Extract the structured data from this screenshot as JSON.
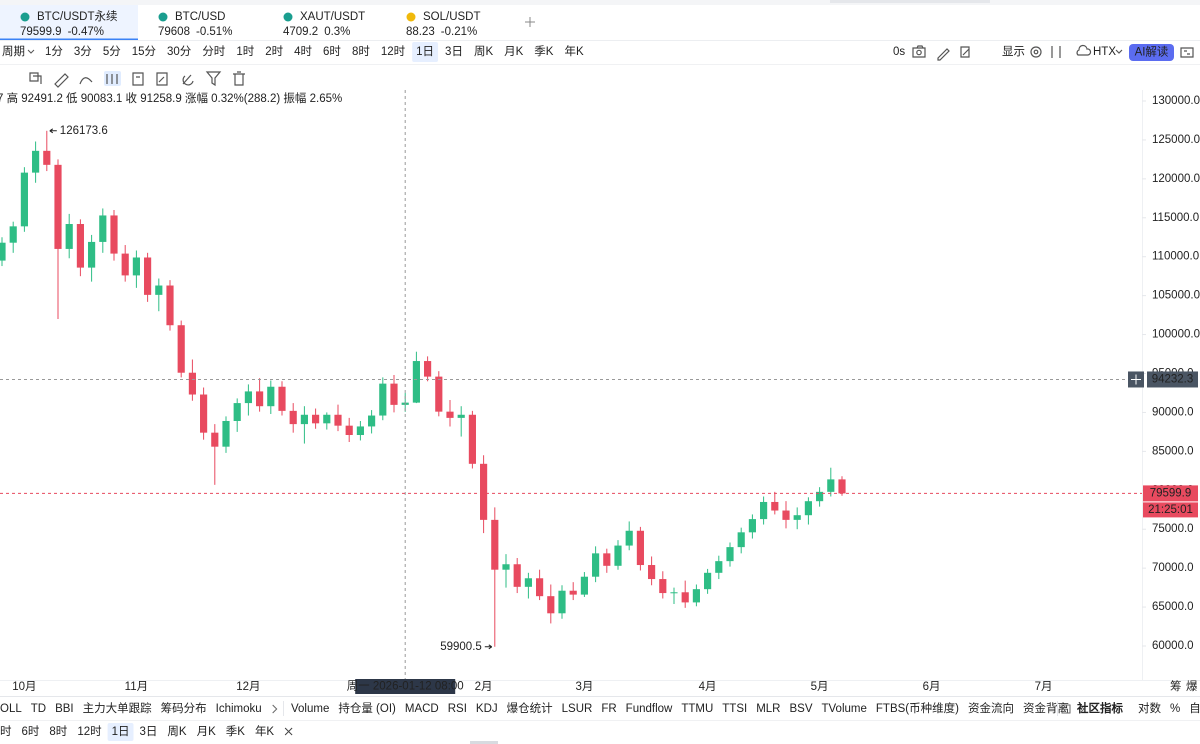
{
  "tabs": [
    {
      "symbol": "BTC/USDT永续",
      "price": "79599.9",
      "change": "-0.47%",
      "color": "#26a69a"
    },
    {
      "symbol": "BTC/USD",
      "price": "79608",
      "change": "-0.51%",
      "color": "#222222"
    },
    {
      "symbol": "XAUT/USDT",
      "price": "4709.2",
      "change": "0.3%",
      "color": "#26a69a"
    },
    {
      "symbol": "SOL/USDT",
      "price": "88.23",
      "change": "-0.21%",
      "color": "#e84a5f"
    }
  ],
  "toolbar": {
    "period": "周期",
    "intervals": [
      "1分",
      "3分",
      "5分",
      "15分",
      "30分",
      "分时",
      "1时",
      "2时",
      "4时",
      "6时",
      "8时",
      "12时",
      "1日",
      "3日",
      "周K",
      "月K",
      "季K",
      "年K"
    ],
    "selected_index": 12,
    "timer": "0s",
    "display": "显示",
    "exchange": "HTX",
    "ai": "AI解读"
  },
  "ohlc_info": "7 高 92491.2 低 90083.1 收 91258.9 涨幅 0.32%(288.2) 振幅 2.65%",
  "chart_data": {
    "type": "candlestick",
    "categories": [
      null,
      null,
      "10月",
      null,
      null,
      null,
      null,
      null,
      null,
      null,
      null,
      null,
      "11月",
      null,
      null,
      null,
      null,
      null,
      null,
      null,
      null,
      null,
      "12月",
      null,
      null,
      null,
      null,
      null,
      null,
      null,
      null,
      null,
      null,
      null,
      null,
      null,
      null,
      null,
      null,
      null,
      null,
      null,
      null,
      "2月",
      null,
      null,
      null,
      null,
      null,
      null,
      null,
      null,
      "3月",
      null,
      null,
      null,
      null,
      null,
      null,
      null,
      null,
      null,
      null,
      "4月",
      null,
      null,
      null,
      null,
      null,
      null,
      null,
      null,
      null,
      "5月",
      null,
      null,
      null,
      null,
      null,
      null,
      null,
      null,
      null,
      "6月",
      null,
      null,
      null,
      null,
      null,
      null,
      null,
      null,
      null,
      "7月",
      null,
      null,
      null,
      null,
      null,
      null,
      null,
      null,
      null
    ],
    "open": [
      109500,
      111800,
      113900,
      120800,
      123600,
      121800,
      111000,
      114200,
      108600,
      111900,
      115300,
      110400,
      107600,
      109900,
      105100,
      106300,
      101200,
      95100,
      92300,
      87400,
      85600,
      88900,
      91200,
      92700,
      90800,
      93300,
      90200,
      88500,
      89700,
      88600,
      89700,
      88300,
      87100,
      88200,
      89600,
      93700,
      90970.7,
      91258.9,
      96600,
      94600,
      90100,
      89300,
      89700,
      83400,
      76200,
      69800,
      70500,
      67600,
      68700,
      66400,
      64200,
      67100,
      66600,
      68900,
      71900,
      70300,
      72900,
      74800,
      70400,
      68600,
      66800,
      66900,
      65600,
      67300,
      69400,
      70900,
      72700,
      74600,
      76300,
      78500,
      77400,
      76200,
      76800,
      78600,
      79800,
      81400,
      null,
      null,
      null,
      null,
      null,
      null,
      null,
      null,
      null,
      null,
      null,
      null,
      null,
      null,
      null,
      null,
      null,
      null,
      null,
      null,
      null,
      null,
      null,
      null,
      null,
      null,
      null
    ],
    "high": [
      112500,
      114500,
      121500,
      124800,
      126173.6,
      122500,
      115500,
      114800,
      112800,
      116200,
      116000,
      111500,
      110800,
      110500,
      107200,
      107000,
      101800,
      96800,
      93200,
      88500,
      89500,
      91800,
      93600,
      94400,
      94100,
      94000,
      91200,
      90800,
      90500,
      90000,
      91000,
      89300,
      88900,
      90300,
      94500,
      94800,
      92491.2,
      97800,
      97200,
      95300,
      91600,
      90800,
      90200,
      84500,
      77800,
      71800,
      71300,
      69400,
      69800,
      67900,
      67800,
      68200,
      69500,
      72800,
      72500,
      73600,
      76000,
      75300,
      71500,
      69600,
      67500,
      68400,
      67900,
      69900,
      71600,
      73300,
      75200,
      76900,
      79200,
      79800,
      78600,
      77800,
      79100,
      80400,
      82900,
      81800,
      null,
      null,
      null,
      null,
      null,
      null,
      null,
      null,
      null,
      null,
      null,
      null,
      null,
      null,
      null,
      null,
      null,
      null,
      null,
      null,
      null,
      null,
      null,
      null,
      null,
      null,
      null
    ],
    "low": [
      108800,
      110500,
      113200,
      119500,
      121000,
      102000,
      109800,
      107500,
      106800,
      110500,
      109500,
      106800,
      106000,
      104200,
      103000,
      100500,
      94500,
      91500,
      86500,
      80700,
      84800,
      87500,
      89600,
      90100,
      89800,
      89600,
      87400,
      86000,
      87900,
      87800,
      87600,
      86200,
      86400,
      87300,
      89000,
      90000,
      90083.1,
      91200,
      94000,
      89500,
      88200,
      86900,
      82800,
      74500,
      59900.5,
      67500,
      66800,
      66100,
      65900,
      62900,
      63500,
      65900,
      66300,
      68200,
      69400,
      69800,
      72300,
      69700,
      67800,
      66100,
      65400,
      64900,
      65100,
      66700,
      68600,
      70200,
      71900,
      73800,
      75600,
      76900,
      75100,
      75000,
      75600,
      77900,
      79200,
      79300,
      null,
      null,
      null,
      null,
      null,
      null,
      null,
      null,
      null,
      null,
      null,
      null,
      null,
      null,
      null,
      null,
      null,
      null,
      null,
      null,
      null,
      null,
      null,
      null,
      null,
      null,
      null
    ],
    "close": [
      111800,
      113900,
      120800,
      123600,
      121800,
      111000,
      114200,
      108600,
      111900,
      115300,
      110400,
      107600,
      109900,
      105100,
      106300,
      101200,
      95100,
      92300,
      87400,
      85600,
      88900,
      91200,
      92700,
      90800,
      93300,
      90200,
      88500,
      89700,
      88600,
      89700,
      88300,
      87100,
      88200,
      89600,
      93700,
      90970.7,
      91258.9,
      96600,
      94600,
      90100,
      89300,
      89700,
      83400,
      76200,
      69800,
      70500,
      67600,
      68700,
      66400,
      64200,
      67100,
      66600,
      68900,
      71900,
      70300,
      72900,
      74800,
      70400,
      68600,
      66800,
      66900,
      65600,
      67300,
      69400,
      70900,
      72700,
      74600,
      76300,
      78500,
      77400,
      76200,
      76800,
      78600,
      79800,
      81400,
      79599.9,
      null,
      null,
      null,
      null,
      null,
      null,
      null,
      null,
      null,
      null,
      null,
      null,
      null,
      null,
      null,
      null,
      null,
      null,
      null,
      null,
      null,
      null,
      null,
      null,
      null,
      null,
      null
    ],
    "up_color": "#2ebd85",
    "down_color": "#e84a5f",
    "ylim": [
      60000,
      130000
    ],
    "yticks": [
      {
        "value": 60000,
        "label": "60000.0"
      },
      {
        "value": 65000,
        "label": "65000.0"
      },
      {
        "value": 70000,
        "label": "70000.0"
      },
      {
        "value": 75000,
        "label": "75000.0"
      },
      {
        "value": 80000,
        "label": "80000.0"
      },
      {
        "value": 85000,
        "label": "85000.0"
      },
      {
        "value": 90000,
        "label": "90000.0"
      },
      {
        "value": 95000,
        "label": "95000.0"
      },
      {
        "value": 100000,
        "label": "100000.0"
      },
      {
        "value": 105000,
        "label": "105000.0"
      },
      {
        "value": 110000,
        "label": "110000.0"
      },
      {
        "value": 115000,
        "label": "115000.0"
      },
      {
        "value": 120000,
        "label": "120000.0"
      },
      {
        "value": 125000,
        "label": "125000.0"
      },
      {
        "value": 130000,
        "label": "130000.0"
      }
    ],
    "grid": false,
    "crosshair": {
      "index": 36,
      "price": 94232.3,
      "time": "周一 2026-01-12 08:00"
    },
    "high_marker_index": 4,
    "low_marker_index": 44,
    "countdown": "21:25:01"
  },
  "axis_buttons": [
    "筹",
    "爆"
  ],
  "indicators": {
    "group1": [
      "OLL",
      "TD",
      "BBI",
      "主力大单跟踪",
      "筹码分布",
      "Ichimoku"
    ],
    "group2": [
      "Volume",
      "持仓量 (OI)",
      "MACD",
      "RSI",
      "KDJ",
      "爆仓统计",
      "LSUR",
      "FR",
      "Fundflow",
      "TTMU",
      "TTSI",
      "MLR",
      "BSV",
      "TVolume",
      "FTBS(币种维度)",
      "资金流向",
      "资金背离"
    ],
    "group3": [
      "社区指标",
      "对数",
      "%",
      "自动"
    ]
  },
  "bottom_intervals": [
    "时",
    "6时",
    "8时",
    "12时",
    "1日",
    "3日",
    "周K",
    "月K",
    "季K",
    "年K"
  ],
  "bottom_selected_index": 4
}
